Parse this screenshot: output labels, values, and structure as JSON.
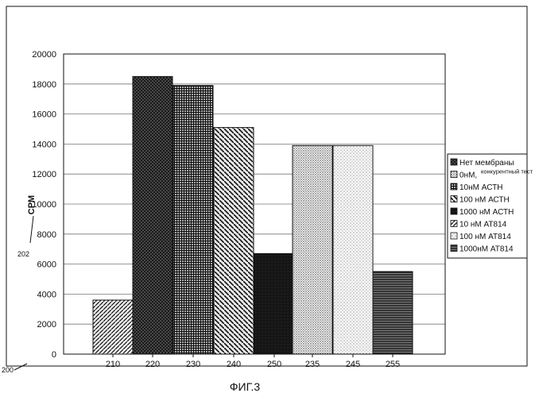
{
  "chart_data": {
    "type": "bar",
    "categories": [
      "210",
      "220",
      "230",
      "240",
      "250",
      "235",
      "245",
      "255"
    ],
    "values": [
      3600,
      18500,
      17900,
      15100,
      6700,
      13900,
      13900,
      5500
    ],
    "bar_fills": [
      "diag-ne",
      "crosshatch",
      "grid",
      "diag-nw",
      "solid-dark",
      "dots-medium",
      "dots-sparse",
      "horizontal"
    ],
    "ylabel": "CPM",
    "ylim": [
      0,
      20000
    ],
    "yticks": [
      0,
      2000,
      4000,
      6000,
      8000,
      10000,
      12000,
      14000,
      16000,
      18000,
      20000
    ],
    "grid": true,
    "legend_position": "right",
    "legend": [
      {
        "fill": "crosshatch",
        "text": "Нет мембраны",
        "small": ""
      },
      {
        "fill": "dots-medium",
        "text": "0нМ,",
        "small": "конкурентный тест"
      },
      {
        "fill": "grid",
        "text": "10нМ АСТН",
        "small": ""
      },
      {
        "fill": "diag-nw",
        "text": "100 нМ АСТН",
        "small": ""
      },
      {
        "fill": "solid-dark",
        "text": "1000 нМ АСТН",
        "small": ""
      },
      {
        "fill": "diag-ne",
        "text": "10 нМ АТ814",
        "small": ""
      },
      {
        "fill": "dots-sparse",
        "text": "100 нМ АТ814",
        "small": ""
      },
      {
        "fill": "horizontal",
        "text": "1000нМ АТ814",
        "small": ""
      }
    ]
  },
  "ref_labels": {
    "figure": "200",
    "axis": "202"
  },
  "caption": "ФИГ.3"
}
